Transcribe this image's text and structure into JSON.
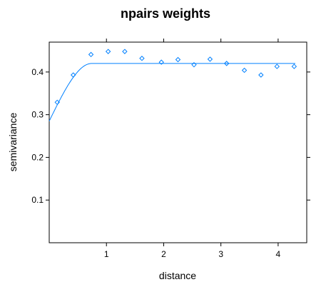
{
  "chart_data": {
    "type": "scatter",
    "title": "npairs weights",
    "xlabel": "distance",
    "ylabel": "semivariance",
    "xlim": [
      0,
      4.5
    ],
    "ylim": [
      0,
      0.47
    ],
    "xticks": [
      1,
      2,
      3,
      4
    ],
    "xtick_labels": [
      "1",
      "2",
      "3",
      "4"
    ],
    "yticks": [
      0.1,
      0.2,
      0.3,
      0.4
    ],
    "ytick_labels": [
      "0.1",
      "0.2",
      "0.3",
      "0.4"
    ],
    "grid": false,
    "legend": "none",
    "color": "#0080ff",
    "points": {
      "x": [
        0.14,
        0.42,
        0.73,
        1.03,
        1.32,
        1.62,
        1.96,
        2.25,
        2.53,
        2.81,
        3.1,
        3.41,
        3.7,
        3.98,
        4.28
      ],
      "y": [
        0.329,
        0.393,
        0.441,
        0.448,
        0.448,
        0.432,
        0.423,
        0.429,
        0.417,
        0.43,
        0.42,
        0.404,
        0.393,
        0.413,
        0.413
      ]
    },
    "model_line": {
      "type": "spherical",
      "nugget": 0.285,
      "sill": 0.42,
      "range": 0.74,
      "x_max": 4.3
    }
  }
}
